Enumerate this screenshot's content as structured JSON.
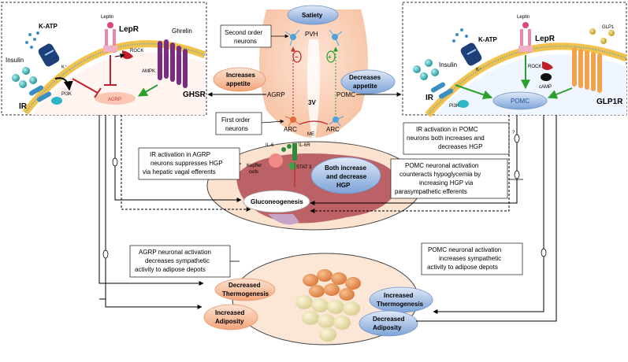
{
  "hypothalamus": {
    "satiety": "Satiety",
    "pvh": "PVH",
    "second_order": [
      "Second order",
      "neurons"
    ],
    "first_order": [
      "First order",
      "neurons"
    ],
    "increases_appetite": [
      "Increases",
      "appetite"
    ],
    "decreases_appetite": [
      "Decreases",
      "appetite"
    ],
    "agrp": "AGRP",
    "pomc": "POMC",
    "v3": "3V",
    "arc_left": "ARC",
    "arc_right": "ARC",
    "me": "ME",
    "minus": "−",
    "plus": "+"
  },
  "agrp_neuron": {
    "insulin": "Insulin",
    "katp": "K-ATP",
    "k_plus": "K⁺",
    "leptin": "Leptin",
    "lepr": "LepR",
    "rock": "ROCK",
    "ampk": "AMPK",
    "ghrelin": "Ghrelin",
    "ghsr": "GHSR",
    "ir": "IR",
    "pi3k": "PI3K",
    "agrp": "AGRP"
  },
  "pomc_neuron": {
    "insulin": "Insulin",
    "katp": "K-ATP",
    "k_plus": "K⁺",
    "leptin": "Leptin",
    "lepr": "LepR",
    "glp1": "GLP1",
    "rock": "ROCK",
    "camp": "cAMP",
    "ir": "IR",
    "pi3k": "PI3K",
    "pomc": "POMC",
    "glp1r": "GLP1R"
  },
  "liver": {
    "il6": "IL-6",
    "il6r": "IL-6R",
    "stat3": "STAT 3",
    "kupffer": [
      "Kupffer",
      "cells"
    ],
    "both": [
      "Both increase",
      "and decrease",
      "HGP"
    ],
    "gluconeogenesis": "Gluconeogenesis"
  },
  "notes": {
    "ir_agrp": [
      "IR activation in AGRP",
      "neurons suppresses HGP",
      "via hepatic vagal efferents"
    ],
    "ir_pomc": [
      "IR activation in POMC",
      "neurons both increases and",
      "decreases HGP"
    ],
    "pomc_counter": [
      "POMC neuronal  activation",
      "counteracts hypoglycemia by",
      "increasing HGP via",
      "parasympathetic efferents"
    ],
    "agrp_sympathetic": [
      "AGRP neuronal activation",
      "decreases  sympathetic",
      "activity to adipose depots"
    ],
    "pomc_sympathetic": [
      "POMC neuronal activation",
      "increases sympathetic",
      "activity to adipose depots"
    ],
    "question": "?"
  },
  "adipose": {
    "dec_thermo": [
      "Decreased",
      "Thermogenesis"
    ],
    "inc_adipo": [
      "Increased",
      "Adiposity"
    ],
    "inc_thermo": [
      "Increased",
      "Thermogenesis"
    ],
    "dec_adipo": [
      "Decreased",
      "Adiposity"
    ]
  }
}
